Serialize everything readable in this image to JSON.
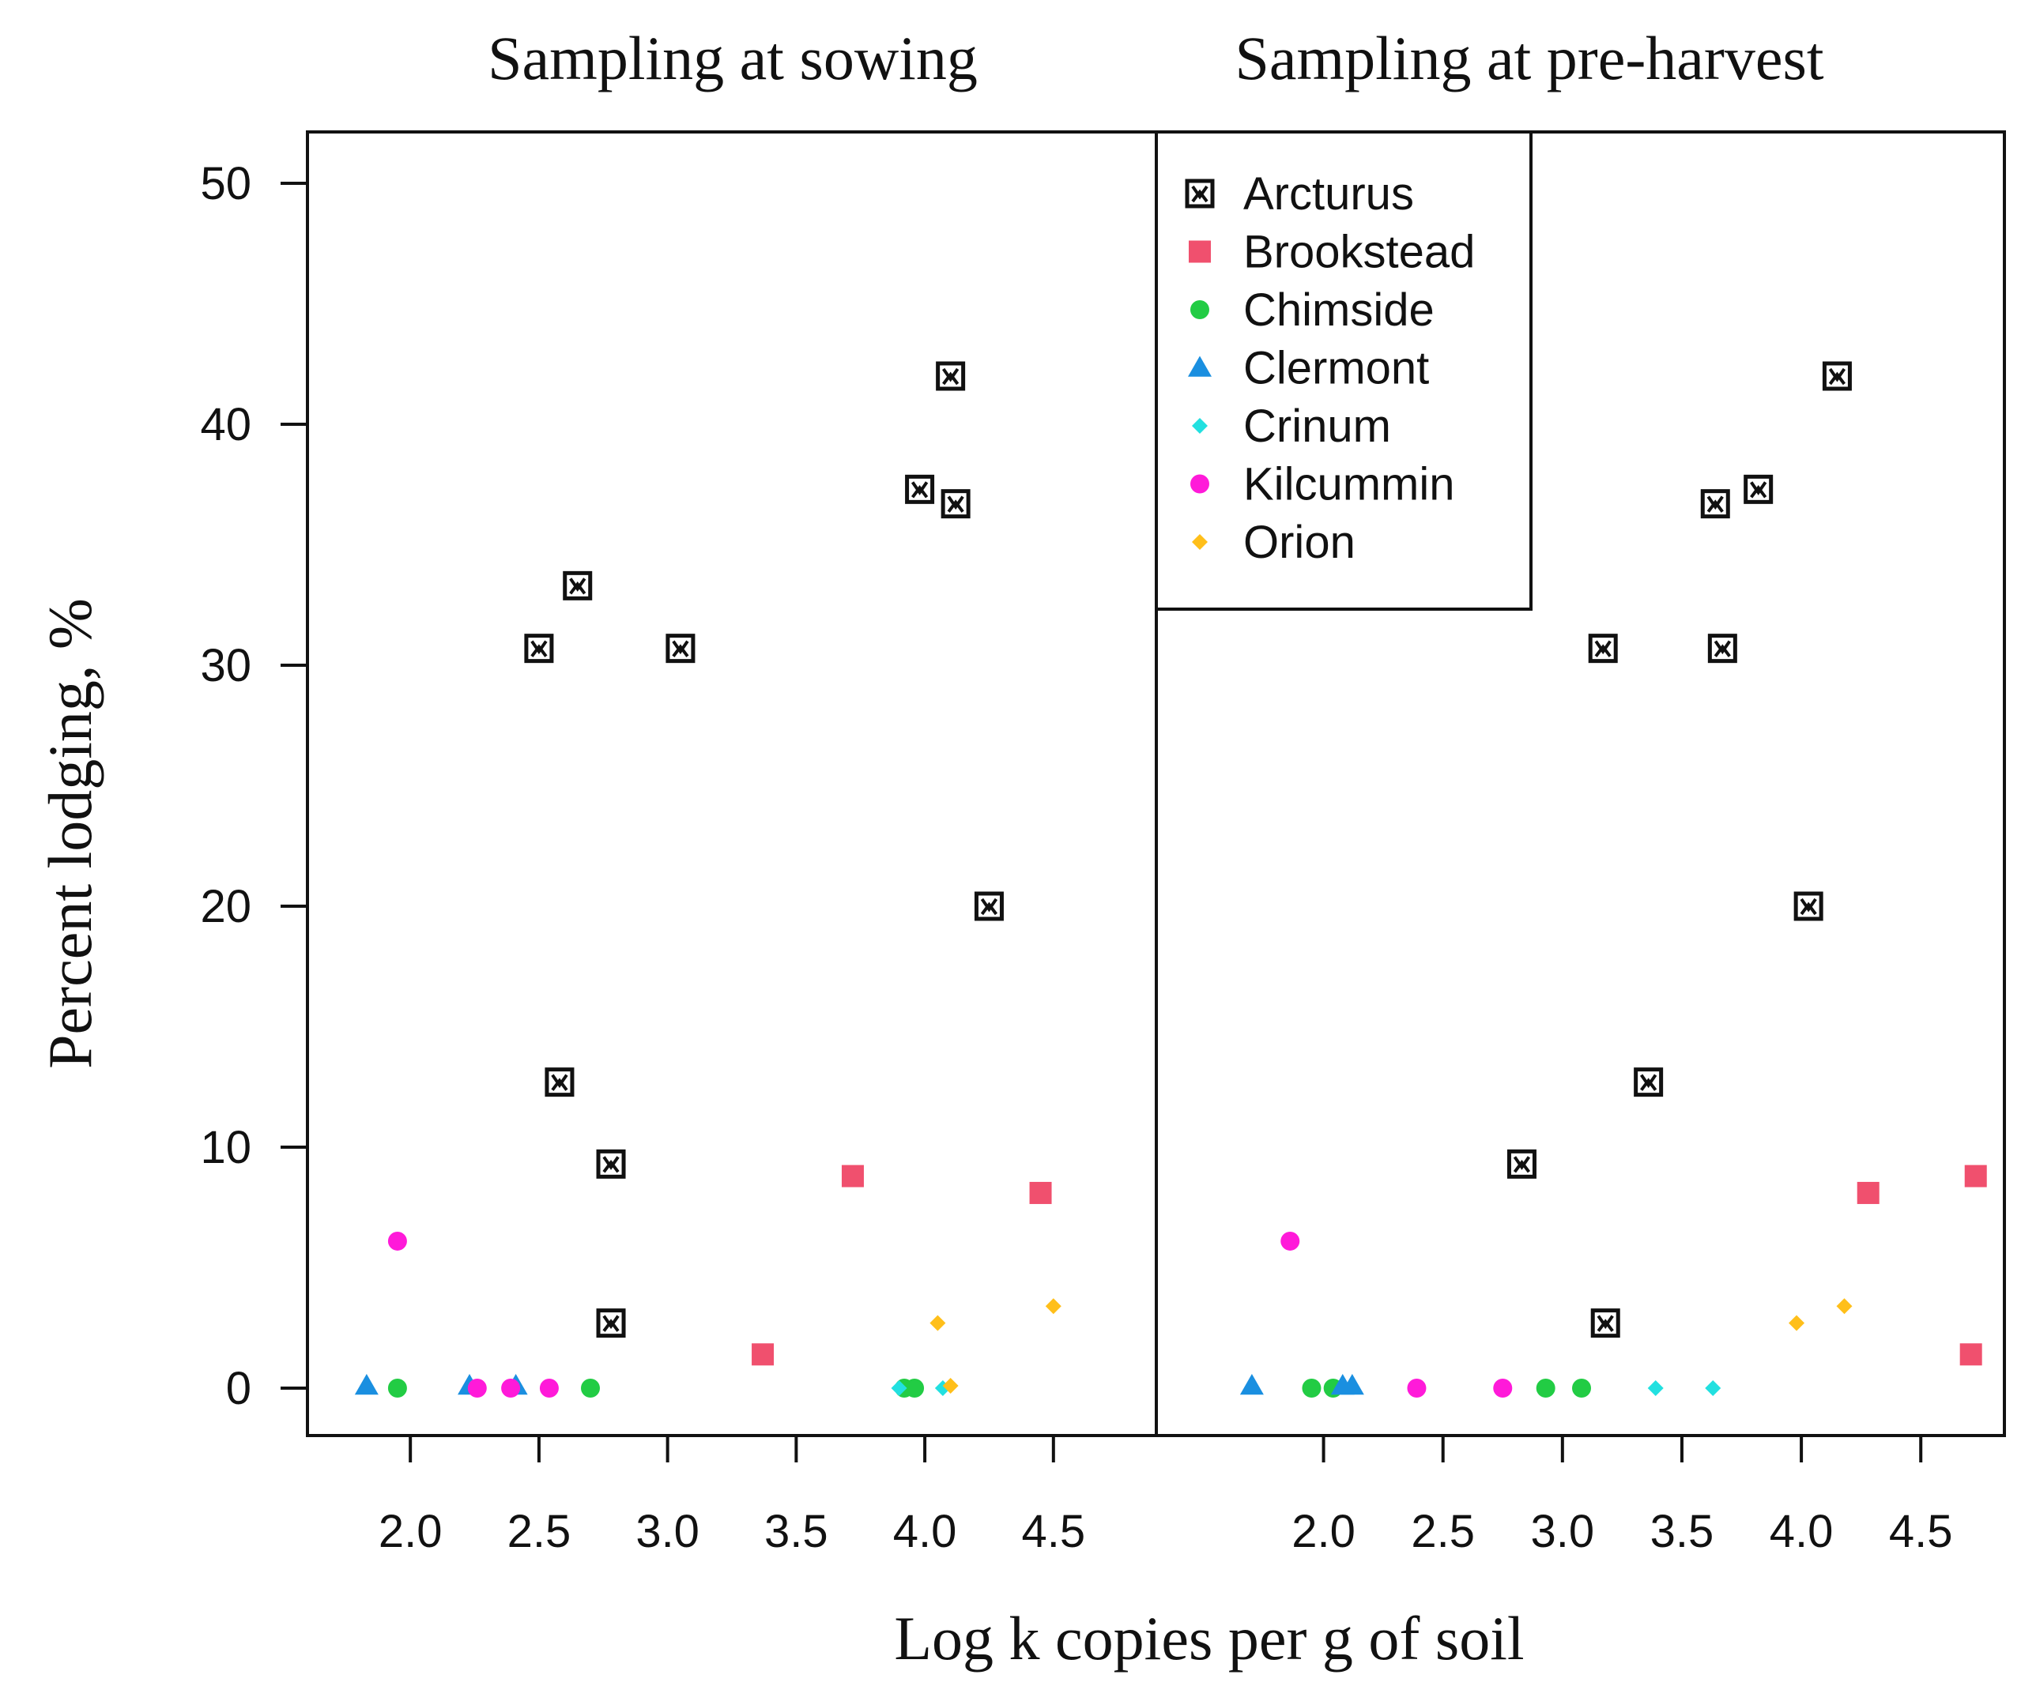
{
  "chart_data": {
    "type": "scatter",
    "ylabel": "Percent lodging, %",
    "xlabel": "Log k copies per g of soil",
    "ylim": [
      0,
      50
    ],
    "yticks": [
      "0",
      "10",
      "20",
      "30",
      "40",
      "50"
    ],
    "legend": {
      "placement": "top-left of right panel",
      "entries": [
        {
          "name": "Arcturus",
          "color": "#111111",
          "marker": "open-square-x"
        },
        {
          "name": "Brookstead",
          "color": "#f0506e",
          "marker": "square"
        },
        {
          "name": "Chimside",
          "color": "#22cc44",
          "marker": "circle"
        },
        {
          "name": "Clermont",
          "color": "#1a8fe0",
          "marker": "triangle"
        },
        {
          "name": "Crinum",
          "color": "#22e0e0",
          "marker": "diamond"
        },
        {
          "name": "Kilcummin",
          "color": "#ff1ad9",
          "marker": "circle"
        },
        {
          "name": "Orion",
          "color": "#ffbf1a",
          "marker": "diamond"
        }
      ]
    },
    "panels": [
      {
        "title": "Sampling at sowing",
        "xlim": [
          1.6,
          4.9
        ],
        "xticks": [
          "2.0",
          "2.5",
          "3.0",
          "3.5",
          "4.0",
          "4.5"
        ],
        "series": [
          {
            "name": "Arcturus",
            "points": [
              [
                2.5,
                30.7
              ],
              [
                2.65,
                33.3
              ],
              [
                3.05,
                30.7
              ],
              [
                2.58,
                12.7
              ],
              [
                2.78,
                9.3
              ],
              [
                2.78,
                2.7
              ],
              [
                3.98,
                37.3
              ],
              [
                4.1,
                42.0
              ],
              [
                4.12,
                36.7
              ],
              [
                4.25,
                20.0
              ]
            ]
          },
          {
            "name": "Brookstead",
            "points": [
              [
                3.37,
                1.4
              ],
              [
                3.72,
                8.8
              ],
              [
                4.45,
                8.1
              ]
            ]
          },
          {
            "name": "Chimside",
            "points": [
              [
                1.95,
                0
              ],
              [
                2.7,
                0
              ],
              [
                3.92,
                0
              ],
              [
                3.96,
                0
              ]
            ]
          },
          {
            "name": "Clermont",
            "points": [
              [
                1.83,
                0.1
              ],
              [
                2.23,
                0.1
              ],
              [
                2.41,
                0.1
              ]
            ]
          },
          {
            "name": "Crinum",
            "points": [
              [
                3.9,
                0
              ],
              [
                4.07,
                0
              ]
            ]
          },
          {
            "name": "Kilcummin",
            "points": [
              [
                1.95,
                6.1
              ],
              [
                2.26,
                0
              ],
              [
                2.39,
                0
              ],
              [
                2.54,
                0
              ]
            ]
          },
          {
            "name": "Orion",
            "points": [
              [
                4.05,
                2.7
              ],
              [
                4.1,
                0.1
              ],
              [
                4.5,
                3.4
              ]
            ]
          }
        ]
      },
      {
        "title": "Sampling at pre-harvest",
        "xlim": [
          1.3,
          4.85
        ],
        "xticks": [
          "2.0",
          "2.5",
          "3.0",
          "3.5",
          "4.0",
          "4.5"
        ],
        "series": [
          {
            "name": "Arcturus",
            "points": [
              [
                2.83,
                9.3
              ],
              [
                3.17,
                30.7
              ],
              [
                3.18,
                2.7
              ],
              [
                3.36,
                12.7
              ],
              [
                3.64,
                36.7
              ],
              [
                3.67,
                30.7
              ],
              [
                3.82,
                37.3
              ],
              [
                4.03,
                20.0
              ],
              [
                4.15,
                42.0
              ]
            ]
          },
          {
            "name": "Brookstead",
            "points": [
              [
                4.28,
                8.1
              ],
              [
                4.71,
                1.4
              ],
              [
                4.73,
                8.8
              ]
            ]
          },
          {
            "name": "Chimside",
            "points": [
              [
                1.95,
                0
              ],
              [
                2.04,
                0
              ],
              [
                2.93,
                0
              ],
              [
                3.08,
                0
              ]
            ]
          },
          {
            "name": "Clermont",
            "points": [
              [
                1.7,
                0.1
              ],
              [
                2.08,
                0.1
              ],
              [
                2.12,
                0.1
              ]
            ]
          },
          {
            "name": "Crinum",
            "points": [
              [
                3.39,
                0
              ],
              [
                3.63,
                0
              ]
            ]
          },
          {
            "name": "Kilcummin",
            "points": [
              [
                1.86,
                6.1
              ],
              [
                2.39,
                0
              ],
              [
                2.75,
                0
              ]
            ]
          },
          {
            "name": "Orion",
            "points": [
              [
                3.98,
                2.7
              ],
              [
                4.18,
                3.4
              ]
            ]
          }
        ]
      }
    ]
  }
}
